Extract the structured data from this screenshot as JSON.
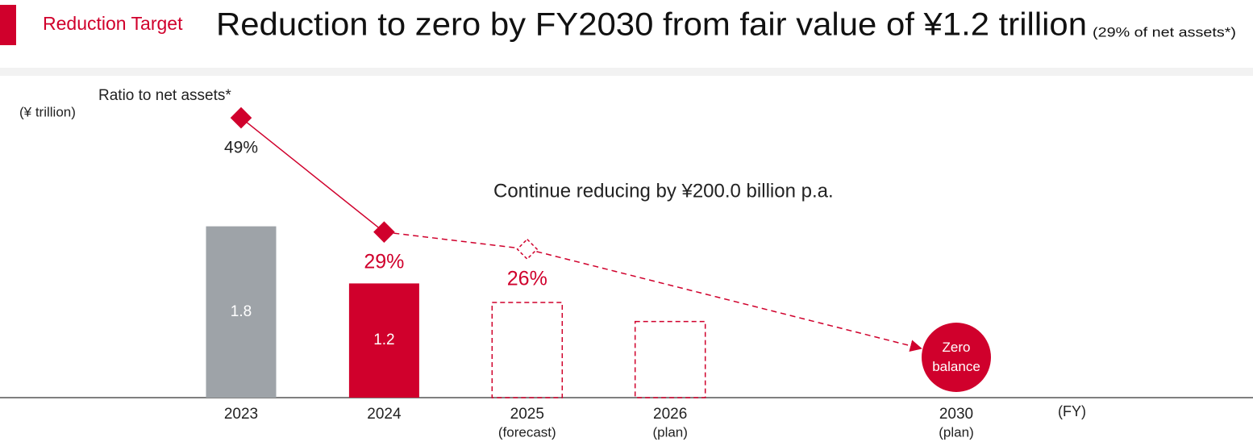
{
  "chart_data": {
    "type": "bar",
    "section_label": "Reduction Target",
    "title": "Reduction to zero by FY2030 from fair value of ¥1.2 trillion",
    "subtitle": "(29% of net assets*)",
    "y_label": "(¥ trillion)",
    "x_label": "(FY)",
    "annotation": "Continue reducing by ¥200.0 billion p.a.",
    "end_label": "Zero balance",
    "categories": [
      "2023",
      "2024",
      "2025",
      "2026",
      "2030"
    ],
    "category_notes": [
      null,
      null,
      "(forecast)",
      "(plan)",
      "(plan)"
    ],
    "values": [
      1.8,
      1.2,
      1.0,
      0.8,
      0
    ],
    "bar_colors": [
      "#9ea3a8",
      "#d0002c",
      "#d0002c",
      "#d0002c",
      "#d0002c"
    ],
    "bar_styles": [
      "solid",
      "solid",
      "dashed",
      "dashed",
      "circle"
    ],
    "ylim": [
      0,
      3
    ],
    "ratio": {
      "name": "Ratio to net assets*",
      "color": "#d0002c",
      "values": [
        49,
        29,
        26,
        null,
        null
      ],
      "value_labels": [
        "49%",
        "29%",
        "26%",
        null,
        null
      ],
      "label_colors": [
        "#222222",
        "#d0002c",
        "#d0002c",
        null,
        null
      ],
      "styles": [
        "solid",
        "solid",
        "hollow",
        null,
        null
      ],
      "y2lim": [
        0,
        50
      ]
    }
  }
}
